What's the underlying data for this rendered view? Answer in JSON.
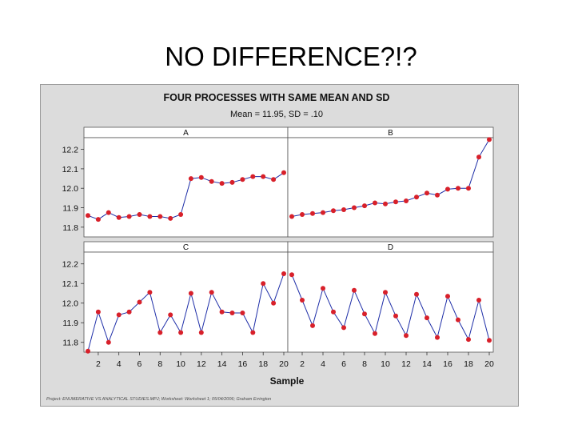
{
  "slide": {
    "title": "NO DIFFERENCE?!?"
  },
  "chart_data": {
    "type": "line",
    "title": "FOUR PROCESSES WITH SAME MEAN AND SD",
    "subtitle": "Mean = 11.95, SD = .10",
    "xlabel": "Sample",
    "ylabel": "",
    "xlim": [
      1,
      20
    ],
    "ylim": [
      11.75,
      12.26
    ],
    "x_ticks": [
      2,
      4,
      6,
      8,
      10,
      12,
      14,
      16,
      18,
      20
    ],
    "y_ticks": [
      11.8,
      11.9,
      12.0,
      12.1,
      12.2
    ],
    "x_tick_labels": [
      "2",
      "4",
      "6",
      "8",
      "10",
      "12",
      "14",
      "16",
      "18",
      "20"
    ],
    "y_tick_labels": [
      "11.8",
      "11.9",
      "12.0",
      "12.1",
      "12.2"
    ],
    "grid": false,
    "legend": "none",
    "line_color": "#1f2fa8",
    "marker_color": "#d8202a",
    "footer": "Project: ENUMERATIVE VS ANALYTICAL STUDIES.MPJ; Worksheet: Worksheet 1; 05/04/2006; Graham Errington",
    "panels": [
      {
        "label": "A",
        "x": [
          1,
          2,
          3,
          4,
          5,
          6,
          7,
          8,
          9,
          10,
          11,
          12,
          13,
          14,
          15,
          16,
          17,
          18,
          19,
          20
        ],
        "y": [
          11.86,
          11.84,
          11.875,
          11.85,
          11.855,
          11.865,
          11.855,
          11.855,
          11.845,
          11.865,
          12.05,
          12.055,
          12.035,
          12.025,
          12.03,
          12.045,
          12.06,
          12.06,
          12.045,
          12.08
        ]
      },
      {
        "label": "B",
        "x": [
          1,
          2,
          3,
          4,
          5,
          6,
          7,
          8,
          9,
          10,
          11,
          12,
          13,
          14,
          15,
          16,
          17,
          18,
          19,
          20
        ],
        "y": [
          11.855,
          11.865,
          11.87,
          11.875,
          11.885,
          11.89,
          11.9,
          11.91,
          11.925,
          11.92,
          11.93,
          11.935,
          11.955,
          11.975,
          11.965,
          11.995,
          12.0,
          12.0,
          12.16,
          12.25
        ]
      },
      {
        "label": "C",
        "x": [
          1,
          2,
          3,
          4,
          5,
          6,
          7,
          8,
          9,
          10,
          11,
          12,
          13,
          14,
          15,
          16,
          17,
          18,
          19,
          20
        ],
        "y": [
          11.755,
          11.955,
          11.8,
          11.94,
          11.955,
          12.005,
          12.055,
          11.85,
          11.94,
          11.85,
          12.05,
          11.85,
          12.055,
          11.955,
          11.95,
          11.95,
          11.85,
          12.1,
          12.0,
          12.15
        ]
      },
      {
        "label": "D",
        "x": [
          1,
          2,
          3,
          4,
          5,
          6,
          7,
          8,
          9,
          10,
          11,
          12,
          13,
          14,
          15,
          16,
          17,
          18,
          19,
          20
        ],
        "y": [
          12.145,
          12.015,
          11.885,
          12.075,
          11.955,
          11.875,
          12.065,
          11.945,
          11.845,
          12.055,
          11.935,
          11.835,
          12.045,
          11.925,
          11.825,
          12.035,
          11.915,
          11.815,
          12.015,
          11.81
        ]
      }
    ]
  }
}
